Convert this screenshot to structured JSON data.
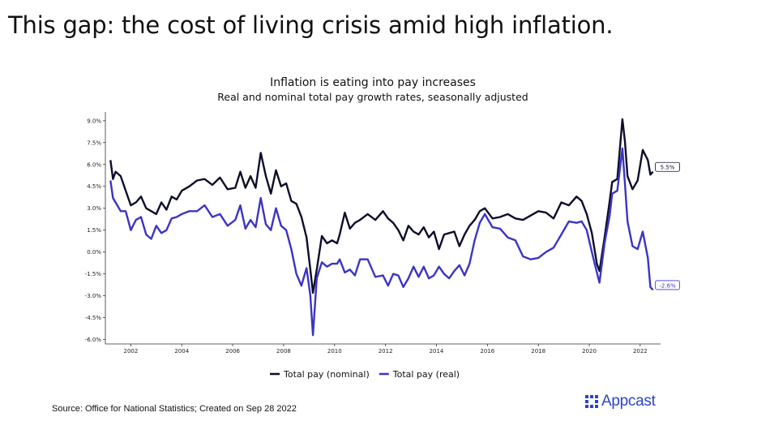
{
  "page": {
    "title": "This gap: the cost of living crisis amid high inflation.",
    "source": "Source: Office for National Statistics; Created on Sep 28 2022",
    "brand": "Appcast",
    "brand_color": "#2b44c9"
  },
  "chart_data": {
    "type": "line",
    "title": "Inflation is eating into pay increases",
    "subtitle": "Real and nominal total pay growth rates, seasonally adjusted",
    "xlabel": "",
    "ylabel": "",
    "xlim": [
      2001,
      2022.8
    ],
    "ylim": [
      -6.3,
      9.6
    ],
    "yticks": [
      9.0,
      7.5,
      6.0,
      4.5,
      3.0,
      1.5,
      0.0,
      -1.5,
      -3.0,
      -4.5,
      -6.0
    ],
    "ytick_labels": [
      "9.0%",
      "7.5%",
      "6.0%",
      "4.5%",
      "3.0%",
      "1.5%",
      "0.0%",
      "-1.5%",
      "-3.0%",
      "-4.5%",
      "-6.0%"
    ],
    "xticks": [
      2002,
      2004,
      2006,
      2008,
      2010,
      2012,
      2014,
      2016,
      2018,
      2020,
      2022
    ],
    "xtick_labels": [
      "2002",
      "2004",
      "2006",
      "2008",
      "2010",
      "2012",
      "2014",
      "2016",
      "2018",
      "2020",
      "2022"
    ],
    "legend": "bottom",
    "series": [
      {
        "name": "Total pay (nominal)",
        "color": "#0d0d2b",
        "end_label": "5.5%",
        "x": [
          2001.2,
          2001.3,
          2001.4,
          2001.6,
          2001.8,
          2002.0,
          2002.2,
          2002.4,
          2002.6,
          2002.8,
          2003.0,
          2003.2,
          2003.4,
          2003.6,
          2003.8,
          2004.0,
          2004.3,
          2004.6,
          2004.9,
          2005.2,
          2005.5,
          2005.8,
          2006.1,
          2006.3,
          2006.5,
          2006.7,
          2006.9,
          2007.1,
          2007.3,
          2007.5,
          2007.7,
          2007.9,
          2008.1,
          2008.3,
          2008.5,
          2008.7,
          2008.9,
          2009.05,
          2009.15,
          2009.3,
          2009.5,
          2009.7,
          2009.9,
          2010.1,
          2010.2,
          2010.4,
          2010.6,
          2010.8,
          2011.0,
          2011.3,
          2011.6,
          2011.9,
          2012.1,
          2012.3,
          2012.5,
          2012.7,
          2012.9,
          2013.1,
          2013.3,
          2013.5,
          2013.7,
          2013.9,
          2014.1,
          2014.3,
          2014.5,
          2014.7,
          2014.9,
          2015.1,
          2015.3,
          2015.5,
          2015.7,
          2015.9,
          2016.2,
          2016.5,
          2016.8,
          2017.1,
          2017.4,
          2017.7,
          2018.0,
          2018.3,
          2018.6,
          2018.9,
          2019.2,
          2019.5,
          2019.7,
          2019.9,
          2020.1,
          2020.3,
          2020.4,
          2020.6,
          2020.8,
          2020.9,
          2021.1,
          2021.3,
          2021.4,
          2021.5,
          2021.7,
          2021.9,
          2022.1,
          2022.3,
          2022.4,
          2022.5
        ],
        "values": [
          6.3,
          5.0,
          5.5,
          5.2,
          4.2,
          3.2,
          3.4,
          3.8,
          3.0,
          2.8,
          2.6,
          3.4,
          2.9,
          3.8,
          3.6,
          4.2,
          4.5,
          4.9,
          5.0,
          4.6,
          5.1,
          4.3,
          4.4,
          5.5,
          4.4,
          5.2,
          4.4,
          6.8,
          5.2,
          4.0,
          5.6,
          4.5,
          4.7,
          3.5,
          3.3,
          2.4,
          1.0,
          -1.2,
          -2.8,
          -1.2,
          1.1,
          0.6,
          0.8,
          0.6,
          1.2,
          2.7,
          1.6,
          2.0,
          2.2,
          2.6,
          2.2,
          2.8,
          2.3,
          2.0,
          1.5,
          0.8,
          1.8,
          1.4,
          1.2,
          1.7,
          1.0,
          1.4,
          0.2,
          1.2,
          1.3,
          1.4,
          0.4,
          1.2,
          1.8,
          2.2,
          2.8,
          3.0,
          2.3,
          2.4,
          2.6,
          2.3,
          2.2,
          2.5,
          2.8,
          2.7,
          2.3,
          3.4,
          3.2,
          3.8,
          3.5,
          2.6,
          1.3,
          -0.8,
          -1.3,
          1.0,
          3.5,
          4.8,
          5.0,
          9.1,
          7.6,
          5.2,
          4.3,
          4.9,
          7.0,
          6.3,
          5.3,
          5.5
        ]
      },
      {
        "name": "Total pay (real)",
        "color": "#3b34c4",
        "end_label": "-2.6%",
        "x": [
          2001.2,
          2001.3,
          2001.4,
          2001.6,
          2001.8,
          2002.0,
          2002.2,
          2002.4,
          2002.6,
          2002.8,
          2003.0,
          2003.2,
          2003.4,
          2003.6,
          2003.8,
          2004.0,
          2004.3,
          2004.6,
          2004.9,
          2005.2,
          2005.5,
          2005.8,
          2006.1,
          2006.3,
          2006.5,
          2006.7,
          2006.9,
          2007.1,
          2007.3,
          2007.5,
          2007.7,
          2007.9,
          2008.1,
          2008.3,
          2008.5,
          2008.7,
          2008.9,
          2009.05,
          2009.15,
          2009.3,
          2009.5,
          2009.7,
          2009.9,
          2010.1,
          2010.2,
          2010.4,
          2010.6,
          2010.8,
          2011.0,
          2011.3,
          2011.6,
          2011.9,
          2012.1,
          2012.3,
          2012.5,
          2012.7,
          2012.9,
          2013.1,
          2013.3,
          2013.5,
          2013.7,
          2013.9,
          2014.1,
          2014.3,
          2014.5,
          2014.7,
          2014.9,
          2015.1,
          2015.3,
          2015.5,
          2015.7,
          2015.9,
          2016.2,
          2016.5,
          2016.8,
          2017.1,
          2017.4,
          2017.7,
          2018.0,
          2018.3,
          2018.6,
          2018.9,
          2019.2,
          2019.5,
          2019.7,
          2019.9,
          2020.1,
          2020.3,
          2020.4,
          2020.6,
          2020.8,
          2020.9,
          2021.1,
          2021.3,
          2021.4,
          2021.5,
          2021.7,
          2021.9,
          2022.1,
          2022.3,
          2022.4,
          2022.5
        ],
        "values": [
          4.9,
          3.7,
          3.4,
          2.8,
          2.8,
          1.5,
          2.2,
          2.4,
          1.2,
          0.9,
          1.8,
          1.3,
          1.5,
          2.3,
          2.4,
          2.6,
          2.8,
          2.8,
          3.2,
          2.4,
          2.6,
          1.8,
          2.2,
          3.2,
          1.6,
          2.2,
          1.7,
          3.7,
          1.9,
          1.5,
          3.0,
          1.8,
          1.5,
          0.2,
          -1.5,
          -2.3,
          -1.1,
          -3.0,
          -5.7,
          -1.8,
          -0.7,
          -1.0,
          -0.8,
          -0.8,
          -0.5,
          -1.4,
          -1.2,
          -1.6,
          -0.5,
          -0.5,
          -1.7,
          -1.6,
          -2.3,
          -1.5,
          -1.6,
          -2.4,
          -1.8,
          -1.0,
          -1.7,
          -1.0,
          -1.8,
          -1.6,
          -1.0,
          -1.5,
          -1.8,
          -1.3,
          -0.9,
          -1.6,
          -0.8,
          0.8,
          2.0,
          2.6,
          1.7,
          1.6,
          1.0,
          0.8,
          -0.3,
          -0.5,
          -0.4,
          0.0,
          0.3,
          1.2,
          2.1,
          2.0,
          2.1,
          1.5,
          0.0,
          -1.4,
          -2.1,
          0.6,
          2.5,
          4.0,
          4.2,
          7.1,
          4.7,
          2.1,
          0.4,
          0.2,
          1.4,
          -0.4,
          -2.4,
          -2.6
        ]
      }
    ]
  }
}
